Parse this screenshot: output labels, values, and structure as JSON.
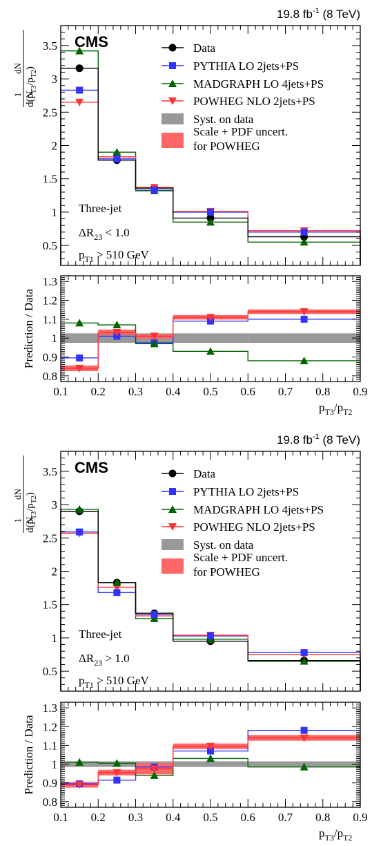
{
  "chart_data": [
    {
      "type": "line",
      "lumi_label": "19.8 fb",
      "lumi_exp": "-1",
      "energy_label": "(8 TeV)",
      "experiment": "CMS",
      "selection": [
        "Three-jet",
        "ΔR",
        "23",
        " < 1.0",
        "p",
        "T1",
        " > 510 GeV"
      ],
      "ylabel_frac_num": "1",
      "ylabel_frac_den": "N",
      "ylabel_dN": "dN",
      "ylabel_den": "d(p",
      "ratio_ylabel": "Prediction / Data",
      "xlabel": "p",
      "xlabel_sub1": "T3",
      "xlabel_slash": "/p",
      "xlabel_sub2": "T2",
      "x_edges": [
        0.1,
        0.2,
        0.3,
        0.4,
        0.6,
        0.9
      ],
      "x_ticklabels": [
        "0.1",
        "0.2",
        "0.3",
        "0.4",
        "0.5",
        "0.6",
        "0.7",
        "0.8",
        "0.9"
      ],
      "main_ylim": [
        0.2,
        3.8
      ],
      "main_yticks": [
        "0.5",
        "1",
        "1.5",
        "2",
        "2.5",
        "3",
        "3.5"
      ],
      "ratio_ylim": [
        0.77,
        1.33
      ],
      "ratio_yticks": [
        "0.8",
        "0.9",
        "1",
        "1.1",
        "1.2",
        "1.3"
      ],
      "legend": {
        "data": "Data",
        "pythia": "PYTHIA LO 2jets+PS",
        "madgraph": "MADGRAPH LO 4jets+PS",
        "powheg": "POWHEG NLO 2jets+PS",
        "syst": "Syst. on data",
        "scale1": "Scale + PDF uncert.",
        "scale2": "for POWHEG"
      },
      "series": [
        {
          "name": "Data",
          "color": "#000000",
          "marker": "circle",
          "values": [
            3.16,
            1.78,
            1.36,
            0.91,
            0.63
          ]
        },
        {
          "name": "PYTHIA LO 2jets+PS",
          "color": "#3333ff",
          "marker": "square",
          "values": [
            2.83,
            1.8,
            1.33,
            1.0,
            0.7
          ]
        },
        {
          "name": "MADGRAPH LO 4jets+PS",
          "color": "#006400",
          "marker": "triangle-up",
          "values": [
            3.42,
            1.9,
            1.32,
            0.85,
            0.55
          ]
        },
        {
          "name": "POWHEG NLO 2jets+PS",
          "color": "#ff3333",
          "marker": "triangle-down",
          "values": [
            2.65,
            1.83,
            1.37,
            1.01,
            0.72
          ]
        }
      ],
      "ratio_series": [
        {
          "name": "PYTHIA LO 2jets+PS",
          "values": [
            0.895,
            1.01,
            0.975,
            1.09,
            1.1
          ]
        },
        {
          "name": "MADGRAPH LO 4jets+PS",
          "values": [
            1.08,
            1.07,
            0.97,
            0.93,
            0.88
          ]
        },
        {
          "name": "POWHEG NLO 2jets+PS",
          "values": [
            0.84,
            1.03,
            1.01,
            1.11,
            1.14
          ]
        }
      ],
      "syst_band": [
        0.025,
        0.025,
        0.025,
        0.025,
        0.025
      ],
      "scale_band": [
        0.015,
        0.015,
        0.012,
        0.012,
        0.012
      ]
    },
    {
      "type": "line",
      "lumi_label": "19.8 fb",
      "lumi_exp": "-1",
      "energy_label": "(8 TeV)",
      "experiment": "CMS",
      "selection": [
        "Three-jet",
        "ΔR",
        "23",
        " > 1.0",
        "p",
        "T1",
        " > 510 GeV"
      ],
      "ylabel_frac_num": "1",
      "ylabel_frac_den": "N",
      "ylabel_dN": "dN",
      "ylabel_den": "d(p",
      "ratio_ylabel": "Prediction / Data",
      "xlabel": "p",
      "xlabel_sub1": "T3",
      "xlabel_slash": "/p",
      "xlabel_sub2": "T2",
      "x_edges": [
        0.1,
        0.2,
        0.3,
        0.4,
        0.6,
        0.9
      ],
      "x_ticklabels": [
        "0.1",
        "0.2",
        "0.3",
        "0.4",
        "0.5",
        "0.6",
        "0.7",
        "0.8",
        "0.9"
      ],
      "main_ylim": [
        0.2,
        3.8
      ],
      "main_yticks": [
        "0.5",
        "1",
        "1.5",
        "2",
        "2.5",
        "3",
        "3.5"
      ],
      "ratio_ylim": [
        0.77,
        1.33
      ],
      "ratio_yticks": [
        "0.8",
        "0.9",
        "1",
        "1.1",
        "1.2",
        "1.3"
      ],
      "legend": {
        "data": "Data",
        "pythia": "PYTHIA LO 2jets+PS",
        "madgraph": "MADGRAPH LO 4jets+PS",
        "powheg": "POWHEG NLO 2jets+PS",
        "syst": "Syst. on data",
        "scale1": "Scale + PDF uncert.",
        "scale2": "for POWHEG"
      },
      "series": [
        {
          "name": "Data",
          "color": "#000000",
          "marker": "circle",
          "values": [
            2.9,
            1.83,
            1.37,
            0.95,
            0.66
          ]
        },
        {
          "name": "PYTHIA LO 2jets+PS",
          "color": "#3333ff",
          "marker": "square",
          "values": [
            2.59,
            1.68,
            1.35,
            1.03,
            0.78
          ]
        },
        {
          "name": "MADGRAPH LO 4jets+PS",
          "color": "#006400",
          "marker": "triangle-up",
          "values": [
            2.93,
            1.83,
            1.29,
            0.98,
            0.65
          ]
        },
        {
          "name": "POWHEG NLO 2jets+PS",
          "color": "#ff3333",
          "marker": "triangle-down",
          "values": [
            2.57,
            1.76,
            1.33,
            1.04,
            0.75
          ]
        }
      ],
      "ratio_series": [
        {
          "name": "PYTHIA LO 2jets+PS",
          "values": [
            0.895,
            0.915,
            0.985,
            1.07,
            1.18
          ]
        },
        {
          "name": "MADGRAPH LO 4jets+PS",
          "values": [
            1.01,
            1.005,
            0.94,
            1.03,
            0.985
          ]
        },
        {
          "name": "POWHEG NLO 2jets+PS",
          "values": [
            0.89,
            0.955,
            0.975,
            1.095,
            1.14
          ]
        }
      ],
      "syst_band": [
        0.015,
        0.015,
        0.015,
        0.015,
        0.015
      ],
      "scale_band": [
        0.015,
        0.015,
        0.03,
        0.015,
        0.015
      ]
    }
  ]
}
